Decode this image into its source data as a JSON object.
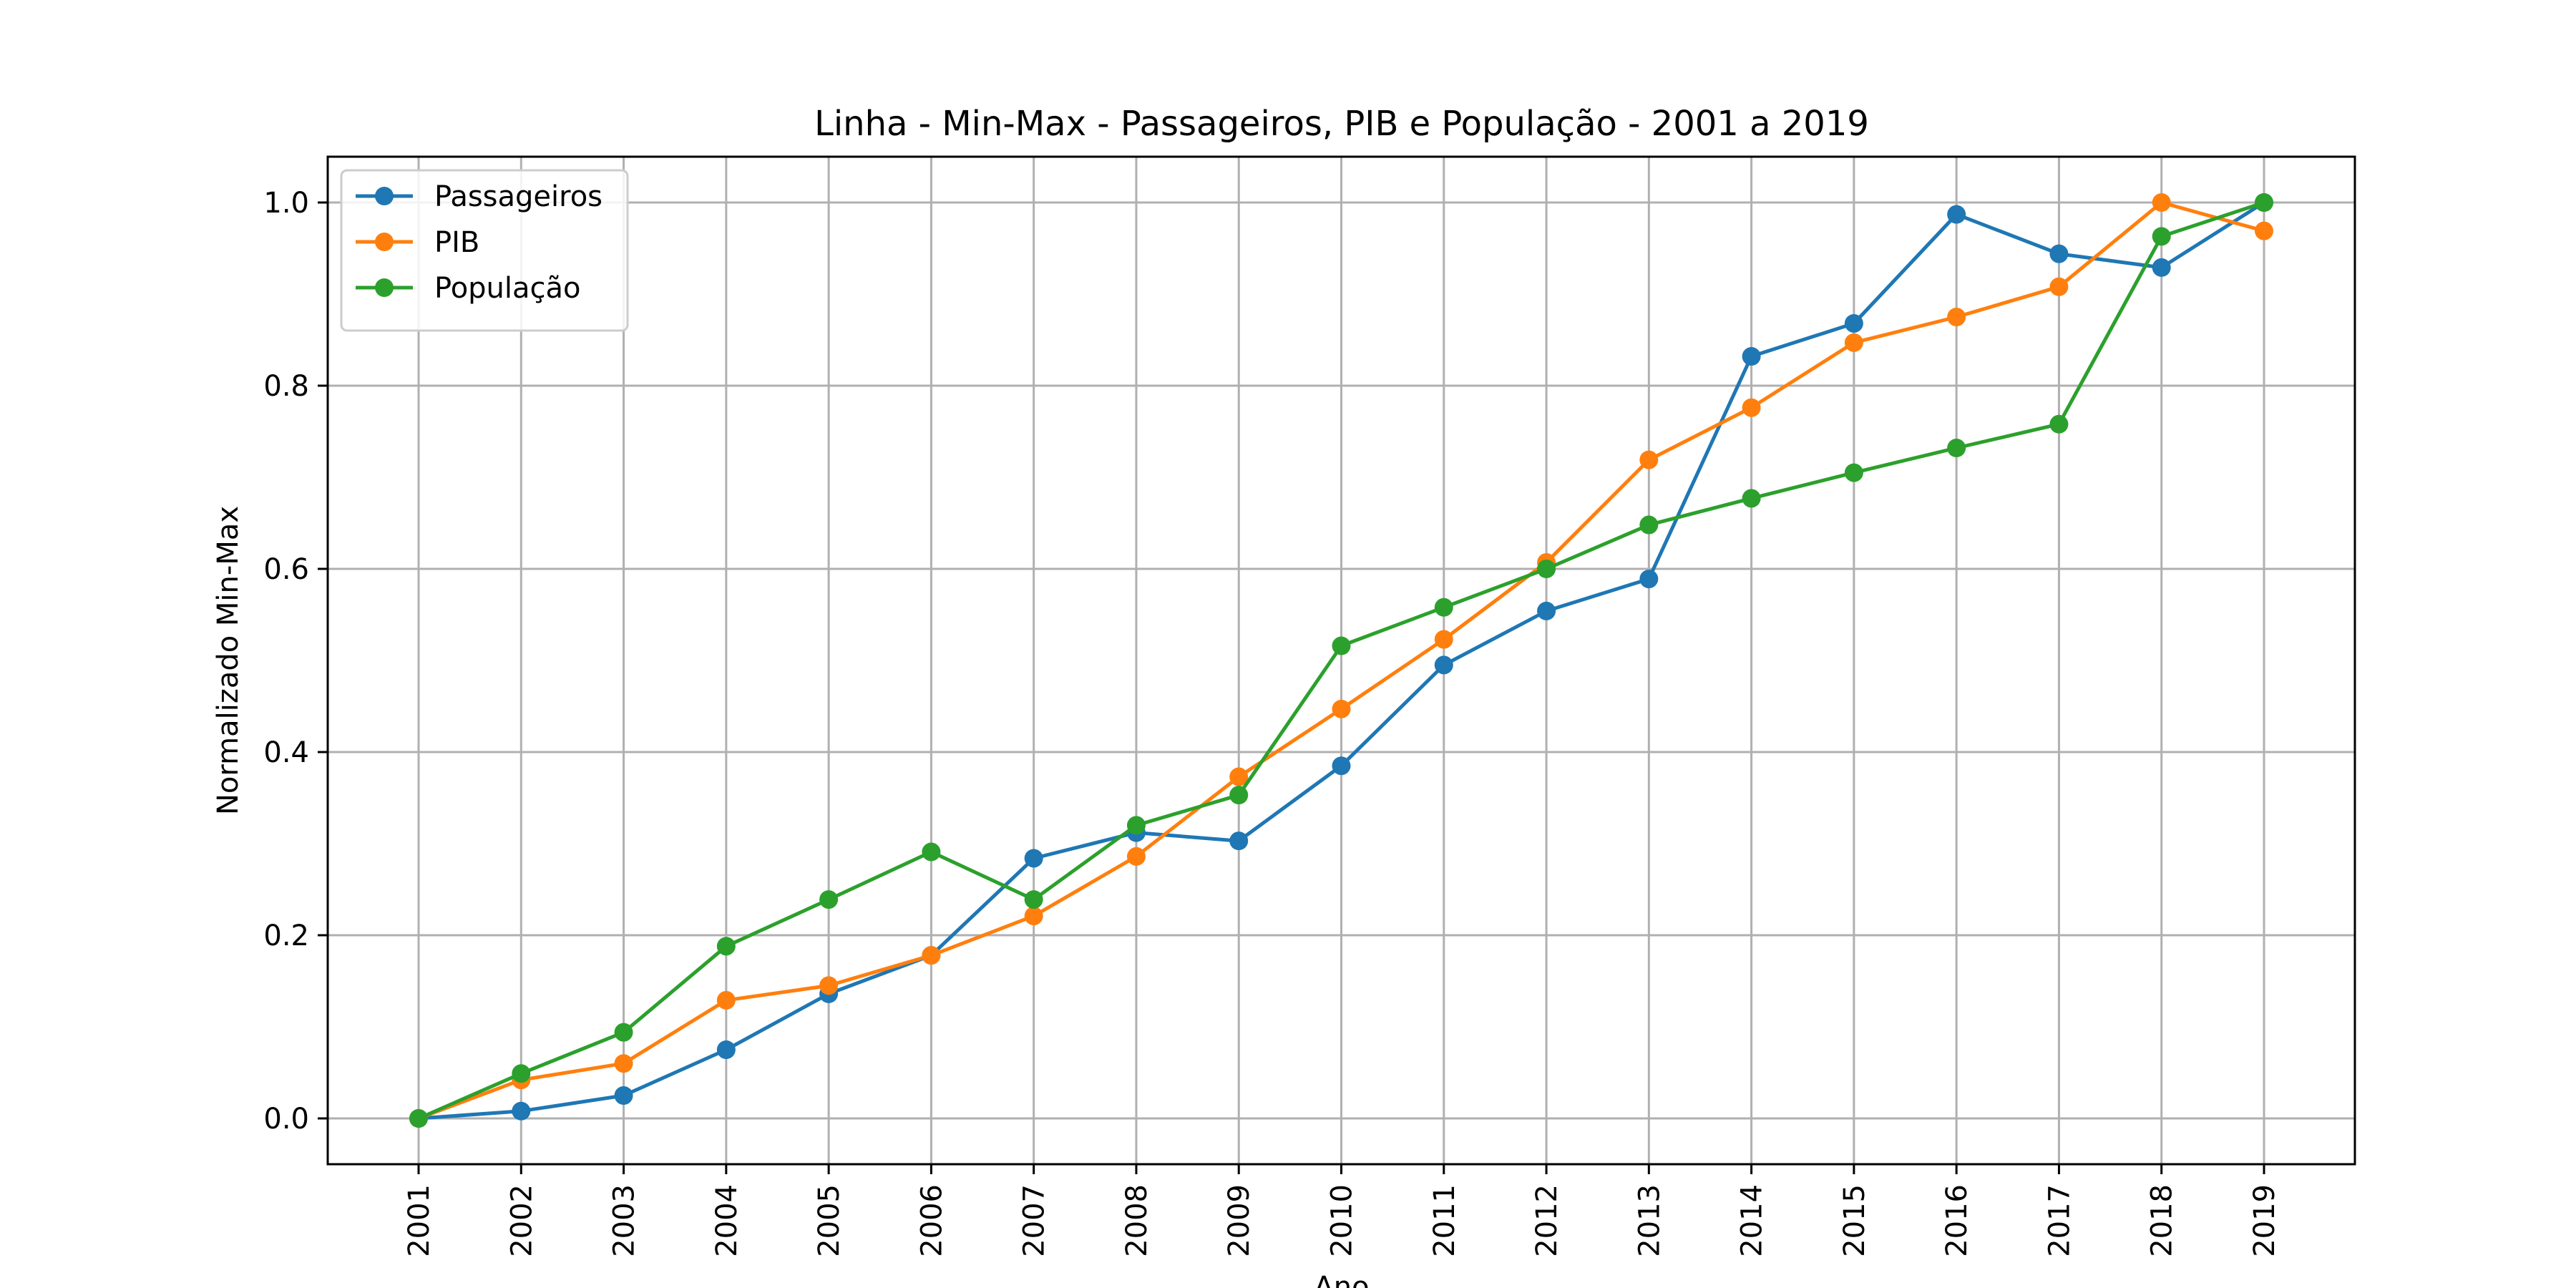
{
  "chart_data": {
    "type": "line",
    "title": "Linha - Min-Max - Passageiros, PIB e População - 2001 a 2019",
    "xlabel": "Ano",
    "ylabel": "Normalizado Min-Max",
    "x": [
      "2001",
      "2002",
      "2003",
      "2004",
      "2005",
      "2006",
      "2007",
      "2008",
      "2009",
      "2010",
      "2011",
      "2012",
      "2013",
      "2014",
      "2015",
      "2016",
      "2017",
      "2018",
      "2019"
    ],
    "ylim": [
      -0.05,
      1.05
    ],
    "yticks": [
      0.0,
      0.2,
      0.4,
      0.6,
      0.8,
      1.0
    ],
    "ytick_labels": [
      "0.0",
      "0.2",
      "0.4",
      "0.6",
      "0.8",
      "1.0"
    ],
    "grid": true,
    "legend_position": "top-left",
    "markers": "circle",
    "series": [
      {
        "name": "Passageiros",
        "color": "#1f77b4",
        "values": [
          0.0,
          0.008,
          0.025,
          0.075,
          0.136,
          0.178,
          0.284,
          0.312,
          0.303,
          0.385,
          0.495,
          0.554,
          0.589,
          0.832,
          0.868,
          0.987,
          0.944,
          0.929,
          1.0
        ]
      },
      {
        "name": "PIB",
        "color": "#ff7f0e",
        "values": [
          0.0,
          0.042,
          0.06,
          0.129,
          0.145,
          0.178,
          0.221,
          0.286,
          0.373,
          0.447,
          0.523,
          0.607,
          0.719,
          0.776,
          0.847,
          0.875,
          0.908,
          1.0,
          0.969
        ]
      },
      {
        "name": "População",
        "color": "#2ca02c",
        "values": [
          0.0,
          0.049,
          0.094,
          0.188,
          0.239,
          0.291,
          0.239,
          0.32,
          0.353,
          0.516,
          0.558,
          0.6,
          0.648,
          0.677,
          0.705,
          0.732,
          0.758,
          0.963,
          1.0
        ]
      }
    ]
  }
}
